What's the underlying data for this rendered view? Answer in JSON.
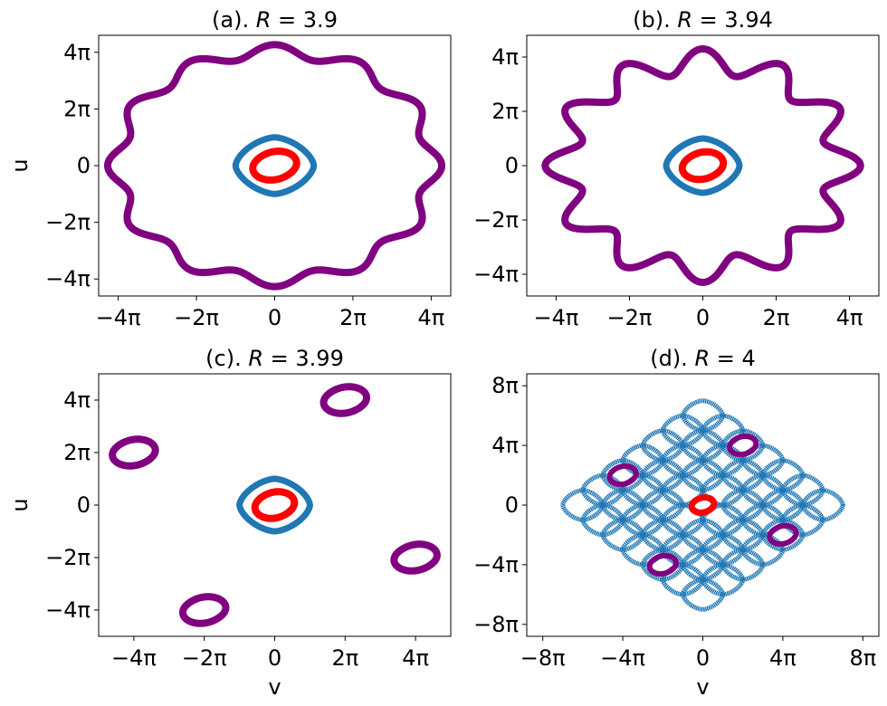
{
  "figure": {
    "x_label": "v",
    "y_label": "u",
    "colors": {
      "blue": "#1f77b4",
      "red": "#ff0000",
      "purple": "#800080"
    }
  },
  "chart_data": [
    {
      "type": "scatter",
      "title_prefix": "(a). ",
      "title_var": "R",
      "title_value": " = 3.9",
      "xlim": [
        -4.5,
        4.5
      ],
      "ylim": [
        -4.6,
        4.6
      ],
      "xticks": [
        -4,
        -2,
        0,
        2,
        4
      ],
      "xtick_labels": [
        "−4π",
        "−2π",
        "0",
        "2π",
        "4π"
      ],
      "yticks": [
        -4,
        -2,
        0,
        2,
        4
      ],
      "ytick_labels": [
        "−4π",
        "−2π",
        "0",
        "2π",
        "4π"
      ],
      "xlabel": "",
      "ylabel": "u",
      "units": "π",
      "series": [
        {
          "color": "purple",
          "shape": "wavy",
          "cx": 0,
          "cy": 0,
          "r": 4.05,
          "amp": 0.22,
          "k": 12,
          "width": 8
        },
        {
          "color": "blue",
          "shape": "diamond",
          "cx": 0,
          "cy": 0,
          "r": 1.0,
          "width": 7
        },
        {
          "color": "red",
          "shape": "blob",
          "cx": 0,
          "cy": 0,
          "rx": 0.55,
          "ry": 0.5,
          "width": 8
        }
      ]
    },
    {
      "type": "scatter",
      "title_prefix": "(b). ",
      "title_var": "R",
      "title_value": " = 3.94",
      "xlim": [
        -4.8,
        4.8
      ],
      "ylim": [
        -4.8,
        4.8
      ],
      "xticks": [
        -4,
        -2,
        0,
        2,
        4
      ],
      "xtick_labels": [
        "−4π",
        "−2π",
        "0",
        "2π",
        "4π"
      ],
      "yticks": [
        -4,
        -2,
        0,
        2,
        4
      ],
      "ytick_labels": [
        "−4π",
        "−2π",
        "0",
        "2π",
        "4π"
      ],
      "xlabel": "",
      "ylabel": "",
      "units": "π",
      "series": [
        {
          "color": "purple",
          "shape": "wavy",
          "cx": 0,
          "cy": 0,
          "r": 3.85,
          "amp": 0.45,
          "k": 12,
          "width": 8
        },
        {
          "color": "blue",
          "shape": "diamond",
          "cx": 0,
          "cy": 0,
          "r": 1.0,
          "width": 7
        },
        {
          "color": "red",
          "shape": "blob",
          "cx": 0,
          "cy": 0,
          "rx": 0.55,
          "ry": 0.5,
          "width": 8
        }
      ]
    },
    {
      "type": "scatter",
      "title_prefix": "(c). ",
      "title_var": "R",
      "title_value": " = 3.99",
      "xlim": [
        -5,
        5
      ],
      "ylim": [
        -5,
        5
      ],
      "xticks": [
        -4,
        -2,
        0,
        2,
        4
      ],
      "xtick_labels": [
        "−4π",
        "−2π",
        "0",
        "2π",
        "4π"
      ],
      "yticks": [
        -4,
        -2,
        0,
        2,
        4
      ],
      "ytick_labels": [
        "−4π",
        "−2π",
        "0",
        "2π",
        "4π"
      ],
      "xlabel": "v",
      "ylabel": "u",
      "units": "π",
      "series": [
        {
          "color": "blue",
          "shape": "diamond",
          "cx": 0,
          "cy": 0,
          "r": 1.0,
          "width": 7
        },
        {
          "color": "red",
          "shape": "blob",
          "cx": 0,
          "cy": 0,
          "rx": 0.55,
          "ry": 0.5,
          "width": 8
        },
        {
          "color": "purple",
          "shape": "blob",
          "cx": -4,
          "cy": 2,
          "rx": 0.6,
          "ry": 0.5,
          "width": 8
        },
        {
          "color": "purple",
          "shape": "blob",
          "cx": 2,
          "cy": 4,
          "rx": 0.6,
          "ry": 0.5,
          "width": 8
        },
        {
          "color": "purple",
          "shape": "blob",
          "cx": 4,
          "cy": -2,
          "rx": 0.6,
          "ry": 0.5,
          "width": 8
        },
        {
          "color": "purple",
          "shape": "blob",
          "cx": -2,
          "cy": -4,
          "rx": 0.6,
          "ry": 0.5,
          "width": 8
        }
      ]
    },
    {
      "type": "scatter",
      "title_prefix": "(d). ",
      "title_var": "R",
      "title_value": " = 4",
      "xlim": [
        -8.8,
        8.8
      ],
      "ylim": [
        -8.8,
        8.8
      ],
      "xticks": [
        -8,
        -4,
        0,
        4,
        8
      ],
      "xtick_labels": [
        "−8π",
        "−4π",
        "0",
        "4π",
        "8π"
      ],
      "yticks": [
        -8,
        -4,
        0,
        4,
        8
      ],
      "ytick_labels": [
        "−8π",
        "−4π",
        "0",
        "4π",
        "8π"
      ],
      "xlabel": "v",
      "ylabel": "",
      "units": "π",
      "series": [
        {
          "color": "blue",
          "shape": "lattice",
          "cx": 0,
          "cy": 0,
          "n": 3,
          "half": 1.0,
          "width": 5
        },
        {
          "color": "purple",
          "shape": "blob",
          "cx": -4,
          "cy": 2,
          "rx": 0.65,
          "ry": 0.6,
          "width": 6
        },
        {
          "color": "purple",
          "shape": "blob",
          "cx": 2,
          "cy": 4,
          "rx": 0.65,
          "ry": 0.6,
          "width": 6
        },
        {
          "color": "purple",
          "shape": "blob",
          "cx": 4,
          "cy": -2,
          "rx": 0.65,
          "ry": 0.6,
          "width": 6
        },
        {
          "color": "purple",
          "shape": "blob",
          "cx": -2,
          "cy": -4,
          "rx": 0.65,
          "ry": 0.6,
          "width": 6
        },
        {
          "color": "red",
          "shape": "blob",
          "cx": 0,
          "cy": 0,
          "rx": 0.55,
          "ry": 0.5,
          "width": 7
        }
      ]
    }
  ]
}
